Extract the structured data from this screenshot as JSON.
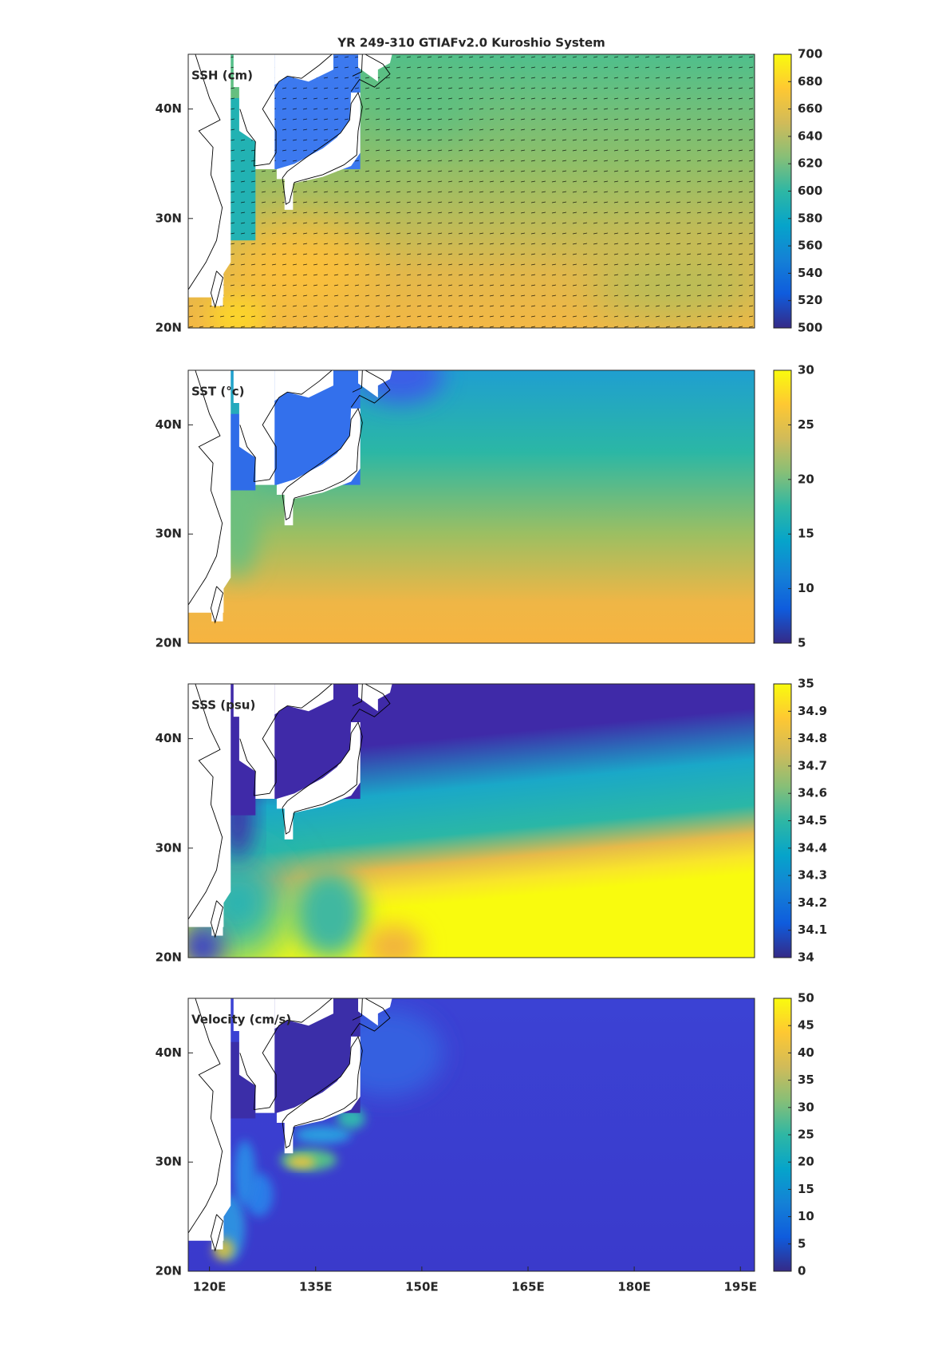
{
  "chart_data": [
    {
      "type": "map",
      "title": "YR 249-310 GTIAFv2.0 Kuroshio System",
      "label": "SSH (cm)",
      "colormap": "parula",
      "xlim": [
        117,
        197
      ],
      "ylim": [
        20,
        45
      ],
      "yticks": [
        {
          "value": 20,
          "label": "20N"
        },
        {
          "value": 30,
          "label": "30N"
        },
        {
          "value": 40,
          "label": "40N"
        }
      ],
      "colorbar": {
        "lim": [
          500,
          700
        ],
        "ticks": [
          500,
          520,
          540,
          560,
          580,
          600,
          620,
          640,
          660,
          680,
          700
        ]
      }
    },
    {
      "type": "map",
      "label": "SST (°c)",
      "colormap": "parula",
      "xlim": [
        117,
        197
      ],
      "ylim": [
        20,
        45
      ],
      "yticks": [
        {
          "value": 20,
          "label": "20N"
        },
        {
          "value": 30,
          "label": "30N"
        },
        {
          "value": 40,
          "label": "40N"
        }
      ],
      "colorbar": {
        "lim": [
          5,
          30
        ],
        "ticks": [
          5,
          10,
          15,
          20,
          25,
          30
        ]
      }
    },
    {
      "type": "map",
      "label": "SSS (psu)",
      "colormap": "parula",
      "xlim": [
        117,
        197
      ],
      "ylim": [
        20,
        45
      ],
      "yticks": [
        {
          "value": 20,
          "label": "20N"
        },
        {
          "value": 30,
          "label": "30N"
        },
        {
          "value": 40,
          "label": "40N"
        }
      ],
      "colorbar": {
        "lim": [
          34,
          35
        ],
        "ticks": [
          34,
          34.1,
          34.2,
          34.3,
          34.4,
          34.5,
          34.6,
          34.7,
          34.8,
          34.9,
          35
        ]
      }
    },
    {
      "type": "map",
      "label": "Velocity (cm/s)",
      "colormap": "parula",
      "xlim": [
        117,
        197
      ],
      "ylim": [
        20,
        45
      ],
      "yticks": [
        {
          "value": 20,
          "label": "20N"
        },
        {
          "value": 30,
          "label": "30N"
        },
        {
          "value": 40,
          "label": "40N"
        }
      ],
      "xticks": [
        {
          "value": 120,
          "label": "120E"
        },
        {
          "value": 135,
          "label": "135E"
        },
        {
          "value": 150,
          "label": "150E"
        },
        {
          "value": 165,
          "label": "165E"
        },
        {
          "value": 180,
          "label": "180E"
        },
        {
          "value": 195,
          "label": "195E"
        }
      ],
      "colorbar": {
        "lim": [
          0,
          50
        ],
        "ticks": [
          0,
          5,
          10,
          15,
          20,
          25,
          30,
          35,
          40,
          45,
          50
        ]
      }
    }
  ]
}
